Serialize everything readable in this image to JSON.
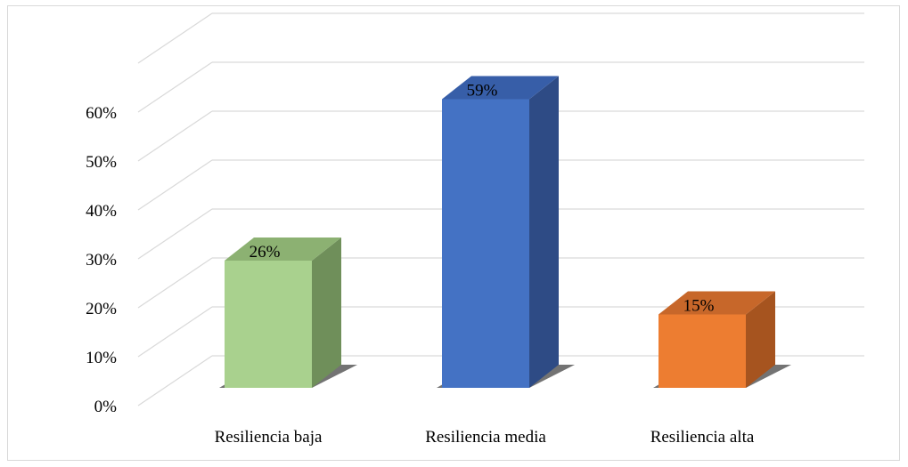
{
  "chart_data": {
    "type": "bar",
    "title": "",
    "xlabel": "",
    "ylabel": "",
    "categories": [
      "Resiliencia baja",
      "Resiliencia media",
      "Resiliencia alta"
    ],
    "values": [
      26,
      59,
      15
    ],
    "data_labels": [
      "26%",
      "59%",
      "15%"
    ],
    "y_ticks": [
      "0%",
      "10%",
      "20%",
      "30%",
      "40%",
      "50%",
      "60%"
    ],
    "ylim": [
      0,
      70
    ],
    "grid": true,
    "three_d": true,
    "colors": {
      "front": [
        "#a9d18e",
        "#4472c4",
        "#ed7d31"
      ],
      "side": [
        "#6f8f5a",
        "#2e4b85",
        "#a6541f"
      ],
      "top": [
        "#8cb172",
        "#375ea8",
        "#c7672a"
      ],
      "gridline": "#d9d9d9"
    }
  }
}
